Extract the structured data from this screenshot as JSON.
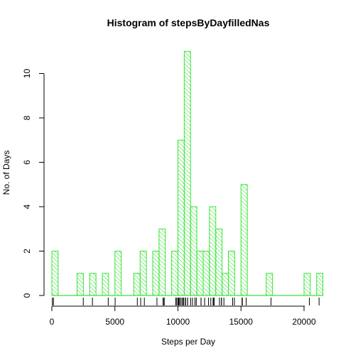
{
  "chart_data": {
    "type": "histogram",
    "title": "Histogram of stepsByDayfilledNas",
    "xlabel": "Steps per Day",
    "ylabel": "No. of Days",
    "bin_width": 500,
    "xlim": [
      0,
      21500
    ],
    "ylim": [
      0,
      11
    ],
    "x_ticks": [
      0,
      5000,
      10000,
      15000,
      20000
    ],
    "y_ticks": [
      0,
      2,
      4,
      6,
      8,
      10
    ],
    "bins_start": [
      0,
      500,
      1000,
      1500,
      2000,
      2500,
      3000,
      3500,
      4000,
      4500,
      5000,
      5500,
      6000,
      6500,
      7000,
      7500,
      8000,
      8500,
      9000,
      9500,
      10000,
      10500,
      11000,
      11500,
      12000,
      12500,
      13000,
      13500,
      14000,
      14500,
      15000,
      15500,
      16000,
      16500,
      17000,
      17500,
      18000,
      18500,
      19000,
      19500,
      20000,
      20500,
      21000
    ],
    "counts": [
      2,
      0,
      0,
      0,
      1,
      0,
      1,
      0,
      1,
      0,
      2,
      0,
      0,
      1,
      2,
      0,
      2,
      3,
      0,
      2,
      7,
      11,
      4,
      2,
      2,
      4,
      3,
      1,
      2,
      0,
      5,
      0,
      0,
      0,
      1,
      0,
      0,
      0,
      0,
      0,
      1,
      0,
      1
    ],
    "rug": [
      41,
      126,
      2492,
      3219,
      4472,
      5018,
      6778,
      7047,
      7336,
      8334,
      8821,
      8841,
      8918,
      9819,
      9900,
      10000,
      10056,
      10139,
      10183,
      10304,
      10395,
      10439,
      10571,
      10600,
      10765,
      10766,
      11015,
      11162,
      11352,
      11458,
      11829,
      11834,
      12116,
      12426,
      12608,
      12787,
      12811,
      12883,
      13294,
      13452,
      13460,
      13646,
      14339,
      14478,
      15084,
      15098,
      15110,
      15414,
      17382,
      20427,
      21194
    ],
    "color": "#39e339",
    "fill": "hatched"
  }
}
